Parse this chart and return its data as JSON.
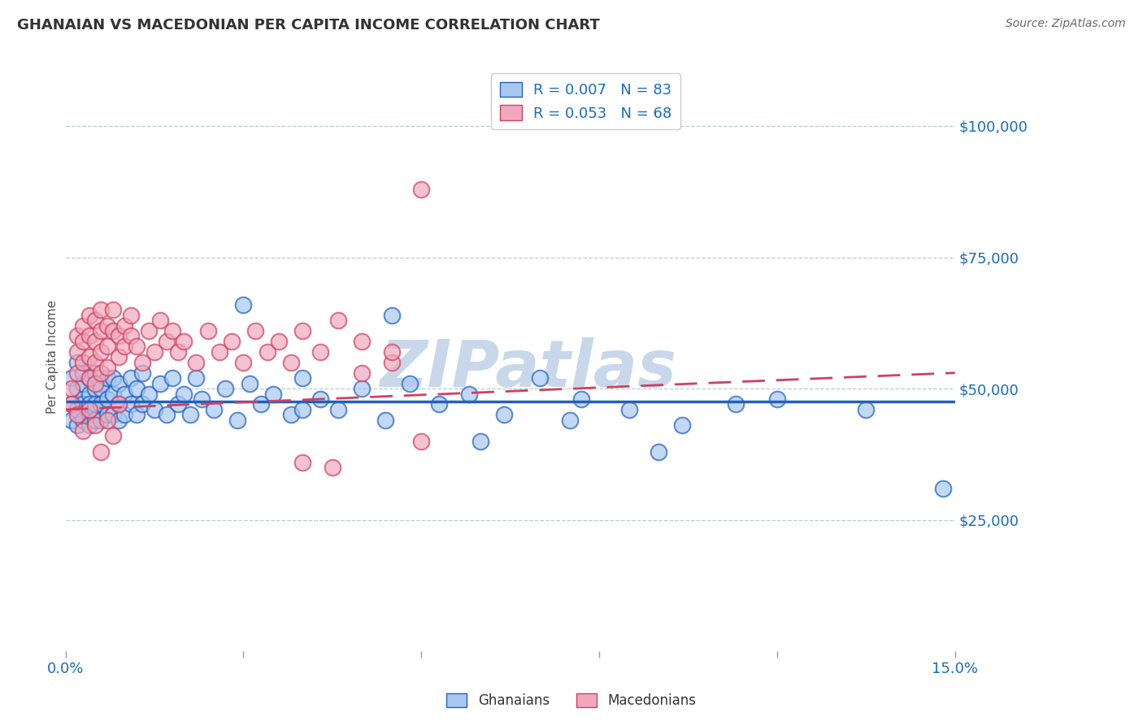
{
  "title": "GHANAIAN VS MACEDONIAN PER CAPITA INCOME CORRELATION CHART",
  "source": "Source: ZipAtlas.com",
  "ylabel": "Per Capita Income",
  "xlim": [
    0.0,
    0.15
  ],
  "ylim": [
    0,
    112000
  ],
  "yticks": [
    0,
    25000,
    50000,
    75000,
    100000
  ],
  "ytick_labels": [
    "",
    "$25,000",
    "$50,000",
    "$75,000",
    "$100,000"
  ],
  "xticks": [
    0.0,
    0.03,
    0.06,
    0.09,
    0.12,
    0.15
  ],
  "xtick_labels": [
    "0.0%",
    "",
    "",
    "",
    "",
    "15.0%"
  ],
  "blue_R": 0.007,
  "blue_N": 83,
  "pink_R": 0.053,
  "pink_N": 68,
  "blue_color": "#a8c8f0",
  "pink_color": "#f0a8bc",
  "blue_line_color": "#2060c0",
  "pink_line_color": "#d04060",
  "watermark": "ZIPatlas",
  "watermark_color": "#c8d8ea",
  "ghanaian_x": [
    0.001,
    0.001,
    0.001,
    0.002,
    0.002,
    0.002,
    0.002,
    0.003,
    0.003,
    0.003,
    0.003,
    0.003,
    0.004,
    0.004,
    0.004,
    0.004,
    0.004,
    0.005,
    0.005,
    0.005,
    0.005,
    0.005,
    0.006,
    0.006,
    0.006,
    0.006,
    0.007,
    0.007,
    0.007,
    0.008,
    0.008,
    0.008,
    0.009,
    0.009,
    0.009,
    0.01,
    0.01,
    0.011,
    0.011,
    0.012,
    0.012,
    0.013,
    0.013,
    0.014,
    0.015,
    0.016,
    0.017,
    0.018,
    0.019,
    0.02,
    0.021,
    0.022,
    0.023,
    0.025,
    0.027,
    0.029,
    0.031,
    0.033,
    0.035,
    0.038,
    0.04,
    0.043,
    0.046,
    0.05,
    0.054,
    0.058,
    0.063,
    0.068,
    0.074,
    0.08,
    0.087,
    0.095,
    0.104,
    0.113,
    0.03,
    0.04,
    0.055,
    0.07,
    0.085,
    0.1,
    0.12,
    0.135,
    0.148
  ],
  "ghanaian_y": [
    52000,
    47000,
    44000,
    50000,
    46000,
    43000,
    55000,
    48000,
    44000,
    51000,
    47000,
    53000,
    49000,
    45000,
    52000,
    47000,
    43000,
    50000,
    46000,
    53000,
    47000,
    44000,
    51000,
    47000,
    44000,
    50000,
    48000,
    45000,
    52000,
    49000,
    45000,
    52000,
    47000,
    44000,
    51000,
    49000,
    45000,
    52000,
    47000,
    50000,
    45000,
    53000,
    47000,
    49000,
    46000,
    51000,
    45000,
    52000,
    47000,
    49000,
    45000,
    52000,
    48000,
    46000,
    50000,
    44000,
    51000,
    47000,
    49000,
    45000,
    52000,
    48000,
    46000,
    50000,
    44000,
    51000,
    47000,
    49000,
    45000,
    52000,
    48000,
    46000,
    43000,
    47000,
    66000,
    46000,
    64000,
    40000,
    44000,
    38000,
    48000,
    46000,
    31000
  ],
  "macedonian_x": [
    0.001,
    0.001,
    0.002,
    0.002,
    0.002,
    0.003,
    0.003,
    0.003,
    0.004,
    0.004,
    0.004,
    0.004,
    0.005,
    0.005,
    0.005,
    0.005,
    0.006,
    0.006,
    0.006,
    0.006,
    0.007,
    0.007,
    0.007,
    0.008,
    0.008,
    0.009,
    0.009,
    0.01,
    0.01,
    0.011,
    0.011,
    0.012,
    0.013,
    0.014,
    0.015,
    0.016,
    0.017,
    0.018,
    0.019,
    0.02,
    0.022,
    0.024,
    0.026,
    0.028,
    0.03,
    0.032,
    0.034,
    0.036,
    0.038,
    0.04,
    0.043,
    0.046,
    0.05,
    0.055,
    0.06,
    0.002,
    0.003,
    0.004,
    0.005,
    0.006,
    0.007,
    0.008,
    0.009,
    0.04,
    0.045,
    0.055,
    0.06,
    0.05
  ],
  "macedonian_y": [
    50000,
    47000,
    60000,
    57000,
    53000,
    62000,
    59000,
    55000,
    64000,
    60000,
    56000,
    52000,
    63000,
    59000,
    55000,
    51000,
    65000,
    61000,
    57000,
    53000,
    62000,
    58000,
    54000,
    65000,
    61000,
    60000,
    56000,
    62000,
    58000,
    64000,
    60000,
    58000,
    55000,
    61000,
    57000,
    63000,
    59000,
    61000,
    57000,
    59000,
    55000,
    61000,
    57000,
    59000,
    55000,
    61000,
    57000,
    59000,
    55000,
    61000,
    57000,
    63000,
    59000,
    55000,
    88000,
    45000,
    42000,
    46000,
    43000,
    38000,
    44000,
    41000,
    47000,
    36000,
    35000,
    57000,
    40000,
    53000
  ]
}
